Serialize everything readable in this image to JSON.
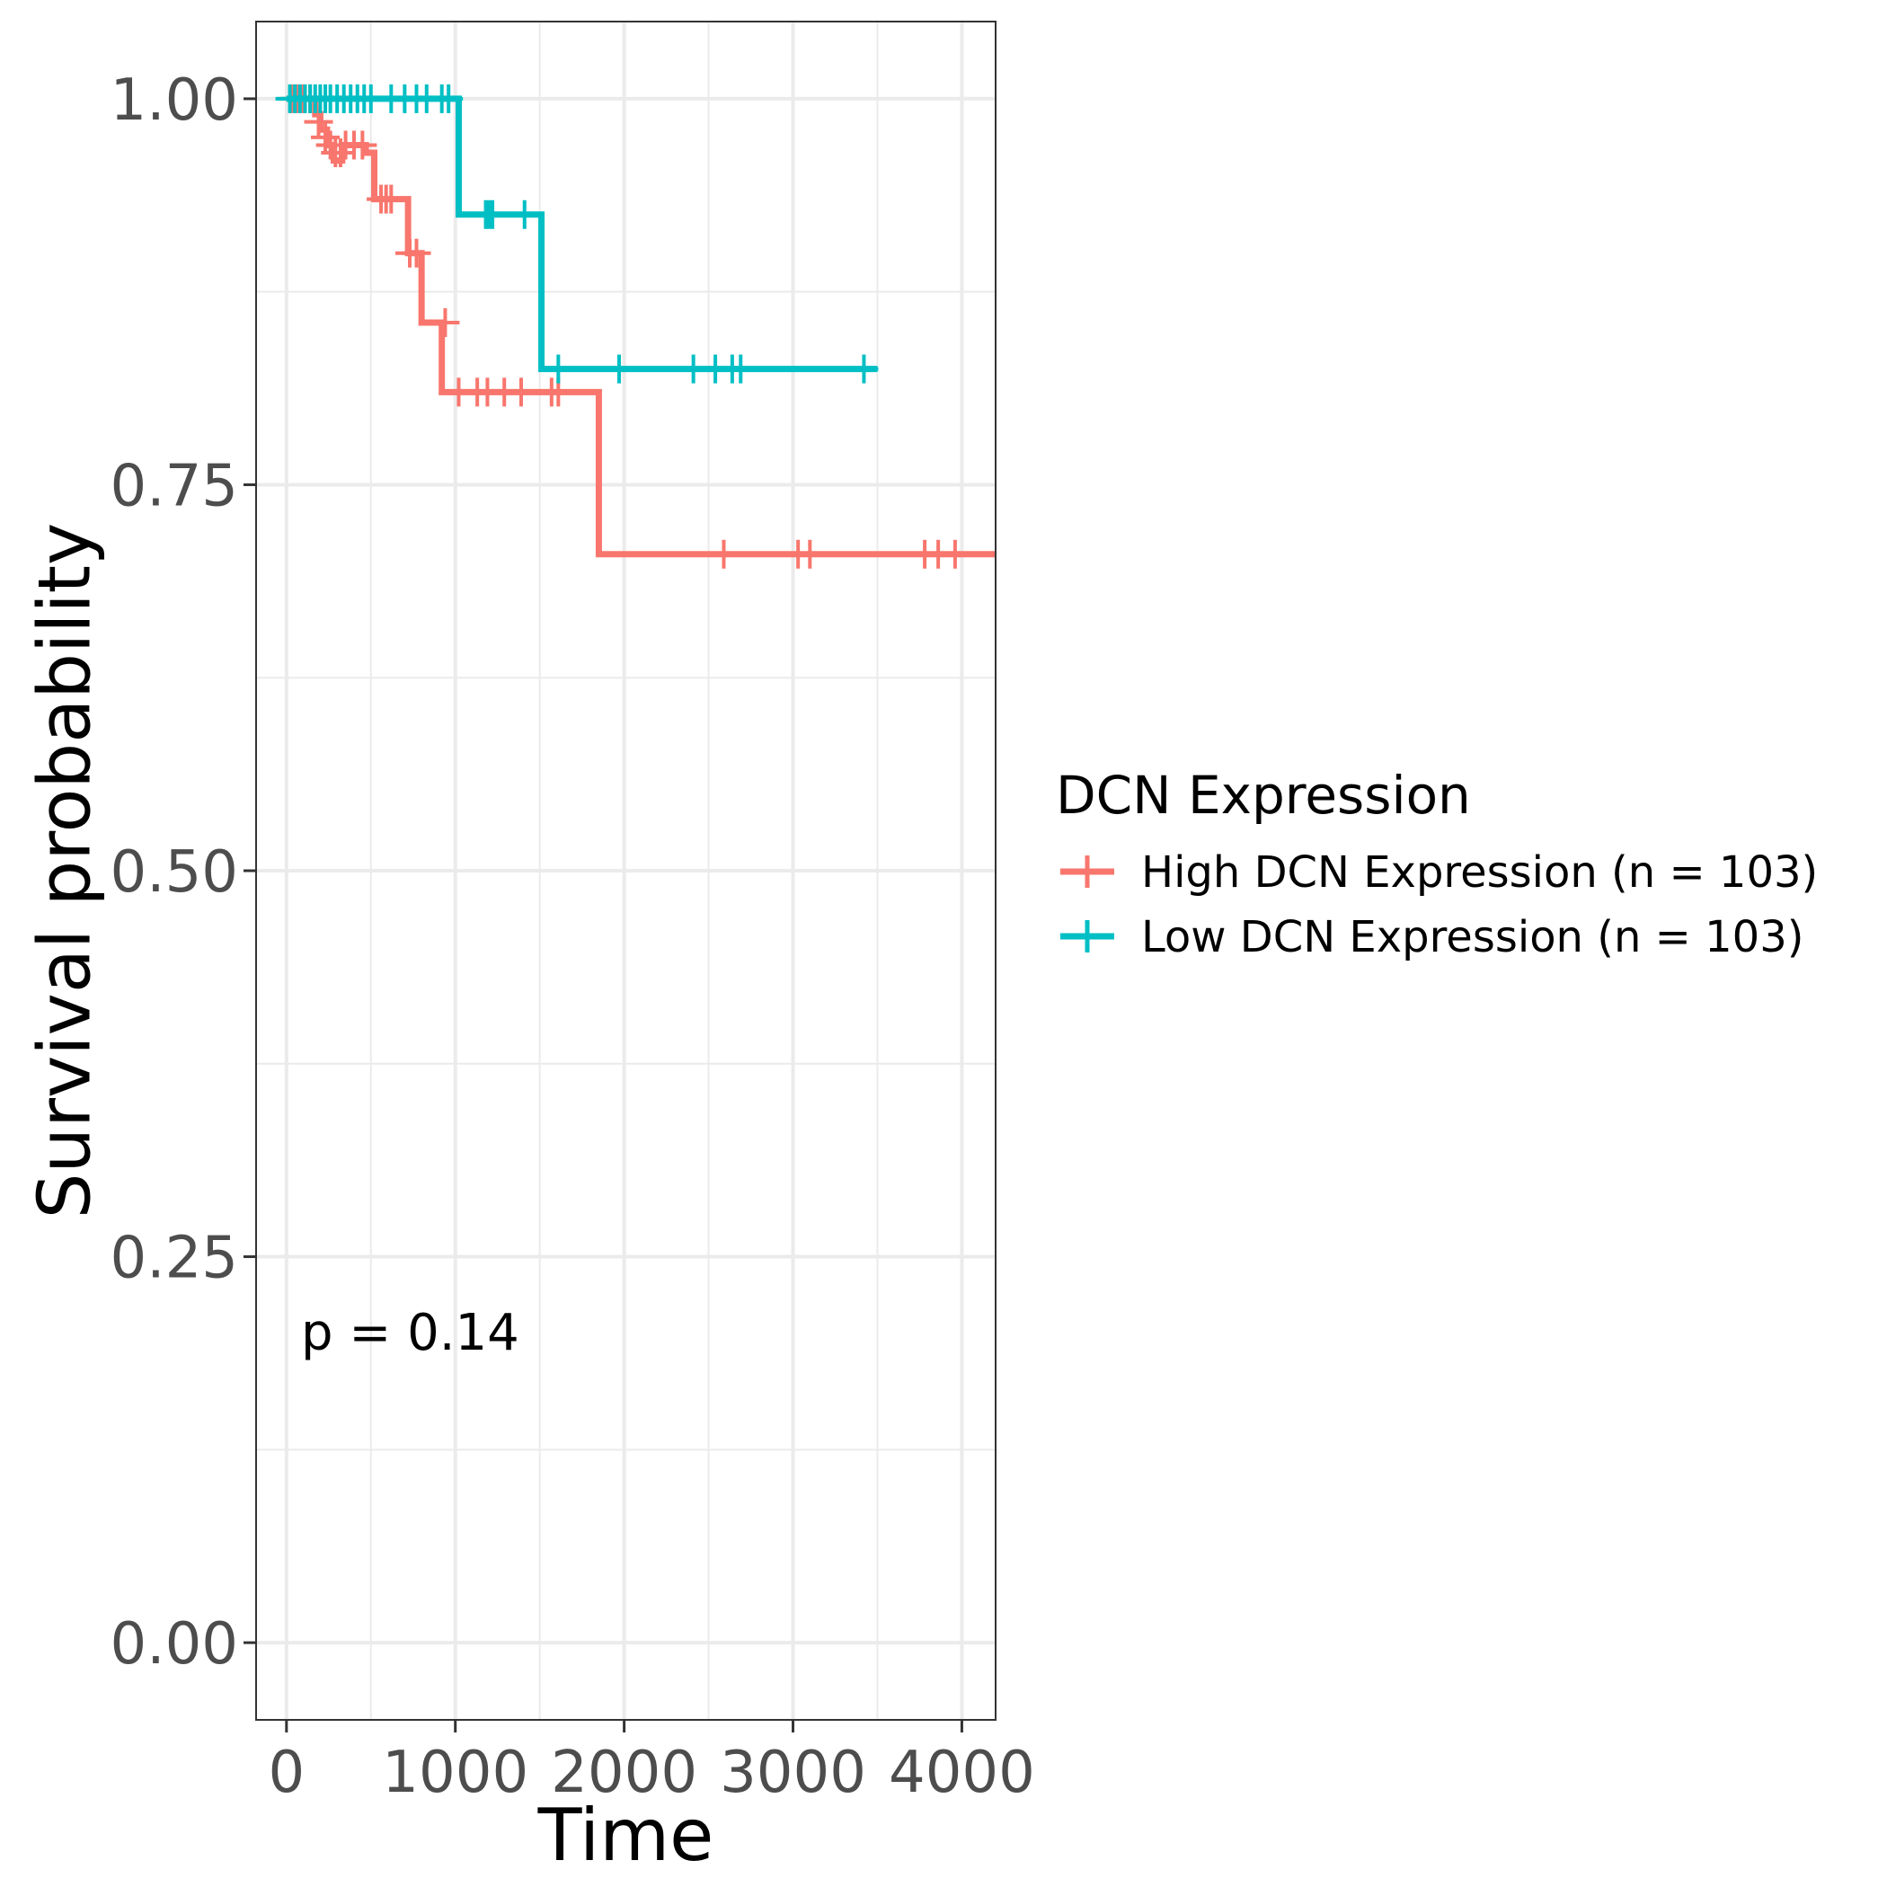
{
  "chart_data": {
    "type": "line",
    "subtype": "kaplan-meier",
    "title": "",
    "xlabel": "Time",
    "ylabel": "Survival probability",
    "xlim": [
      -180,
      4200
    ],
    "ylim": [
      -0.05,
      1.05
    ],
    "x_ticks": [
      {
        "value": 0,
        "label": "0"
      },
      {
        "value": 1000,
        "label": "1000"
      },
      {
        "value": 2000,
        "label": "2000"
      },
      {
        "value": 3000,
        "label": "3000"
      },
      {
        "value": 4000,
        "label": "4000"
      }
    ],
    "y_ticks": [
      {
        "value": 0,
        "label": "0.00"
      },
      {
        "value": 0.25,
        "label": "0.25"
      },
      {
        "value": 0.5,
        "label": "0.50"
      },
      {
        "value": 0.75,
        "label": "0.75"
      },
      {
        "value": 1.0,
        "label": "1.00"
      }
    ],
    "grid": true,
    "legend": {
      "title": "DCN Expression",
      "position": "right"
    },
    "annotation": "p = 0.14",
    "series": [
      {
        "name": "High DCN Expression (n = 103)",
        "color": "#F8766D",
        "steps": [
          [
            0,
            1.0
          ],
          [
            170,
            0.99
          ],
          [
            200,
            0.98
          ],
          [
            240,
            0.97
          ],
          [
            280,
            0.96
          ],
          [
            330,
            0.97
          ],
          [
            470,
            0.965
          ],
          [
            520,
            0.935
          ],
          [
            720,
            0.9
          ],
          [
            800,
            0.855
          ],
          [
            920,
            0.81
          ],
          [
            1850,
            0.705
          ],
          [
            4200,
            0.705
          ]
        ],
        "censors": [
          [
            30,
            1.0
          ],
          [
            60,
            1.0
          ],
          [
            100,
            1.0
          ],
          [
            140,
            1.0
          ],
          [
            190,
            0.985
          ],
          [
            230,
            0.975
          ],
          [
            260,
            0.97
          ],
          [
            290,
            0.965
          ],
          [
            320,
            0.965
          ],
          [
            350,
            0.97
          ],
          [
            400,
            0.97
          ],
          [
            450,
            0.97
          ],
          [
            560,
            0.935
          ],
          [
            590,
            0.935
          ],
          [
            620,
            0.935
          ],
          [
            730,
            0.9
          ],
          [
            770,
            0.9
          ],
          [
            940,
            0.855
          ],
          [
            1020,
            0.81
          ],
          [
            1130,
            0.81
          ],
          [
            1190,
            0.81
          ],
          [
            1290,
            0.81
          ],
          [
            1390,
            0.81
          ],
          [
            1570,
            0.81
          ],
          [
            1610,
            0.81
          ],
          [
            2590,
            0.705
          ],
          [
            3030,
            0.705
          ],
          [
            3100,
            0.705
          ],
          [
            3780,
            0.705
          ],
          [
            3860,
            0.705
          ],
          [
            3960,
            0.705
          ]
        ]
      },
      {
        "name": "Low DCN Expression (n = 103)",
        "color": "#00BFC4",
        "steps": [
          [
            0,
            1.0
          ],
          [
            1020,
            0.925
          ],
          [
            1510,
            0.825
          ],
          [
            3500,
            0.825
          ]
        ],
        "censors": [
          [
            20,
            1.0
          ],
          [
            50,
            1.0
          ],
          [
            80,
            1.0
          ],
          [
            110,
            1.0
          ],
          [
            140,
            1.0
          ],
          [
            170,
            1.0
          ],
          [
            200,
            1.0
          ],
          [
            230,
            1.0
          ],
          [
            260,
            1.0
          ],
          [
            300,
            1.0
          ],
          [
            340,
            1.0
          ],
          [
            380,
            1.0
          ],
          [
            420,
            1.0
          ],
          [
            460,
            1.0
          ],
          [
            500,
            1.0
          ],
          [
            620,
            1.0
          ],
          [
            700,
            1.0
          ],
          [
            770,
            1.0
          ],
          [
            830,
            1.0
          ],
          [
            920,
            1.0
          ],
          [
            960,
            1.0
          ],
          [
            1180,
            0.925
          ],
          [
            1200,
            0.925
          ],
          [
            1220,
            0.925
          ],
          [
            1410,
            0.925
          ],
          [
            1610,
            0.825
          ],
          [
            1970,
            0.825
          ],
          [
            2410,
            0.825
          ],
          [
            2540,
            0.825
          ],
          [
            2640,
            0.825
          ],
          [
            2690,
            0.825
          ],
          [
            3420,
            0.825
          ]
        ]
      }
    ]
  }
}
